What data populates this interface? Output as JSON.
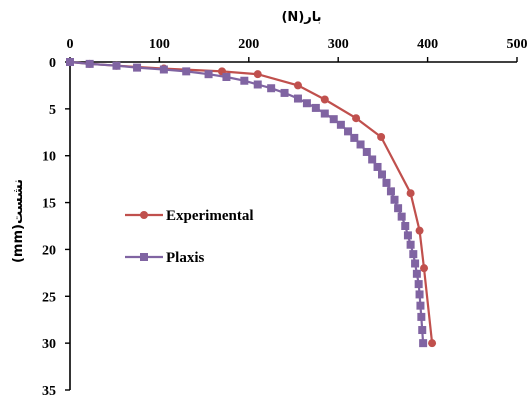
{
  "chart_data": {
    "type": "line",
    "x_axis": {
      "label": "بار(N)",
      "position": "top",
      "ticks": [
        0,
        100,
        200,
        300,
        400,
        500
      ],
      "range": [
        0,
        500
      ]
    },
    "y_axis": {
      "label": "نشست(mm)",
      "inverted": true,
      "ticks": [
        0,
        5,
        10,
        15,
        20,
        25,
        30,
        35
      ],
      "range": [
        0,
        35
      ]
    },
    "grid": false,
    "legend_position": "left-middle",
    "series": [
      {
        "name": "Experimental",
        "color": "#c0504d",
        "marker": "circle",
        "x": [
          0,
          22,
          52,
          105,
          170,
          210,
          255,
          285,
          320,
          348,
          381,
          391,
          396,
          405
        ],
        "y": [
          0,
          0.2,
          0.4,
          0.7,
          1.0,
          1.3,
          2.5,
          4.0,
          6.0,
          8.0,
          14.0,
          18.0,
          22.0,
          30.0
        ]
      },
      {
        "name": "Plaxis",
        "color": "#8064a2",
        "marker": "square",
        "x": [
          0,
          22,
          52,
          75,
          105,
          130,
          155,
          175,
          195,
          210,
          225,
          240,
          255,
          265,
          275,
          285,
          295,
          303,
          311,
          318,
          325,
          332,
          338,
          344,
          349,
          354,
          359,
          363,
          367,
          371,
          375,
          378,
          381,
          384,
          386,
          388,
          390,
          391,
          392,
          393,
          394,
          395
        ],
        "y": [
          0,
          0.2,
          0.4,
          0.6,
          0.8,
          1.0,
          1.3,
          1.6,
          2.0,
          2.4,
          2.8,
          3.3,
          3.9,
          4.4,
          4.9,
          5.5,
          6.1,
          6.7,
          7.4,
          8.1,
          8.8,
          9.6,
          10.4,
          11.2,
          12.0,
          12.9,
          13.8,
          14.7,
          15.6,
          16.5,
          17.5,
          18.5,
          19.5,
          20.5,
          21.5,
          22.6,
          23.7,
          24.8,
          26.0,
          27.2,
          28.6,
          30.0
        ]
      }
    ]
  }
}
